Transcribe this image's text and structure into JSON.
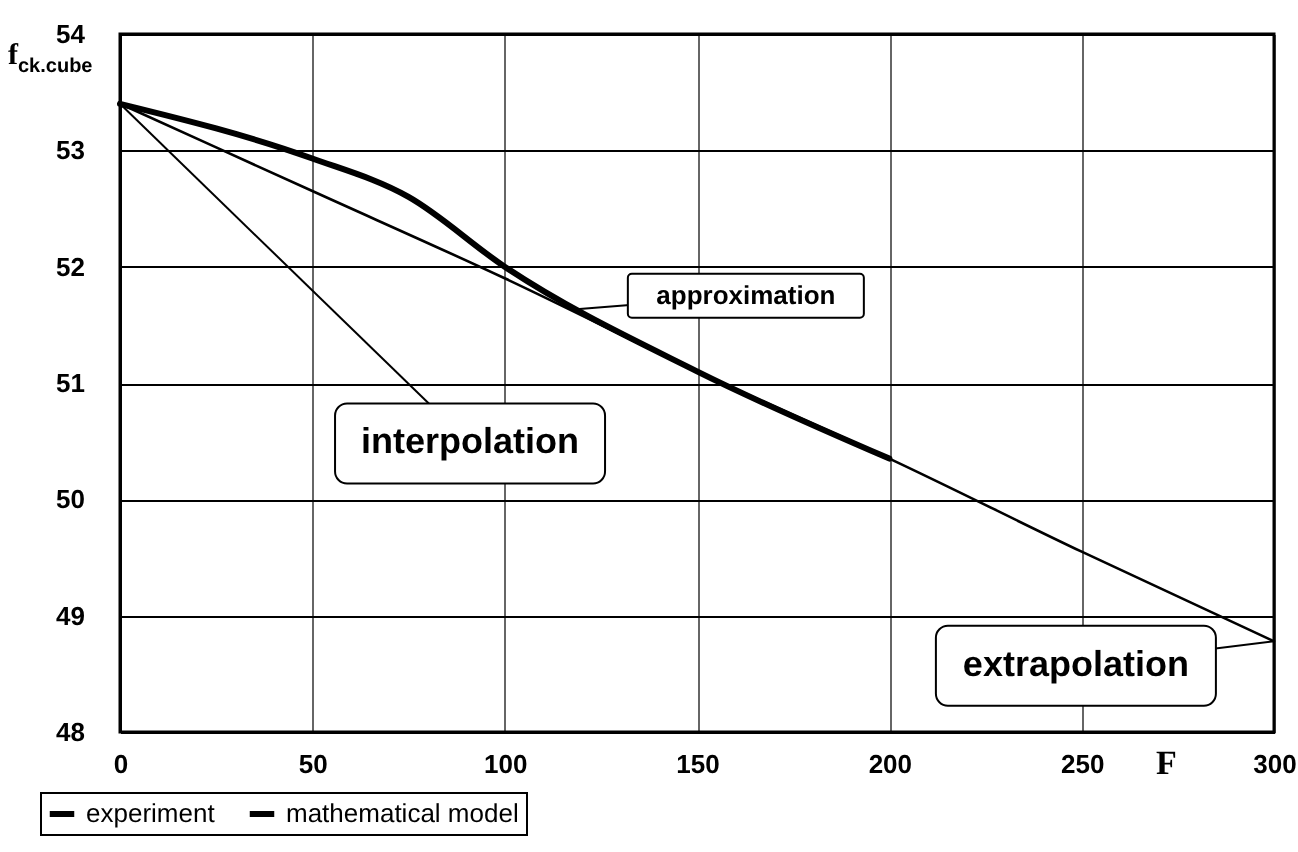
{
  "chart_data": {
    "type": "line",
    "xlabel": "F",
    "ylabel": "f$_{ck.cube}$",
    "xlim": [
      0,
      300
    ],
    "xticks": [
      0,
      50,
      100,
      150,
      200,
      250,
      300
    ],
    "ylim": [
      48,
      54
    ],
    "yticks": [
      48,
      49,
      50,
      51,
      52,
      53,
      54
    ],
    "grid": true,
    "legend": "bottom left",
    "series": [
      {
        "name": "experiment",
        "color": "#000000",
        "x": [
          0,
          50,
          75,
          100,
          150,
          200
        ],
        "values": [
          53.4,
          52.93,
          52.6,
          52.0,
          51.1,
          50.35
        ]
      },
      {
        "name": "mathematical model",
        "color": "#000000",
        "x": [
          0,
          50,
          100,
          150,
          200,
          250,
          300
        ],
        "values": [
          53.4,
          52.65,
          51.9,
          51.1,
          50.35,
          49.55,
          48.78
        ]
      }
    ],
    "annotations": [
      {
        "text": "approximation",
        "x": 117,
        "y": 51.63
      },
      {
        "text": "interpolation",
        "x": 0,
        "y": 53.4
      },
      {
        "text": "extrapolation",
        "x": 300,
        "y": 48.78
      }
    ]
  }
}
